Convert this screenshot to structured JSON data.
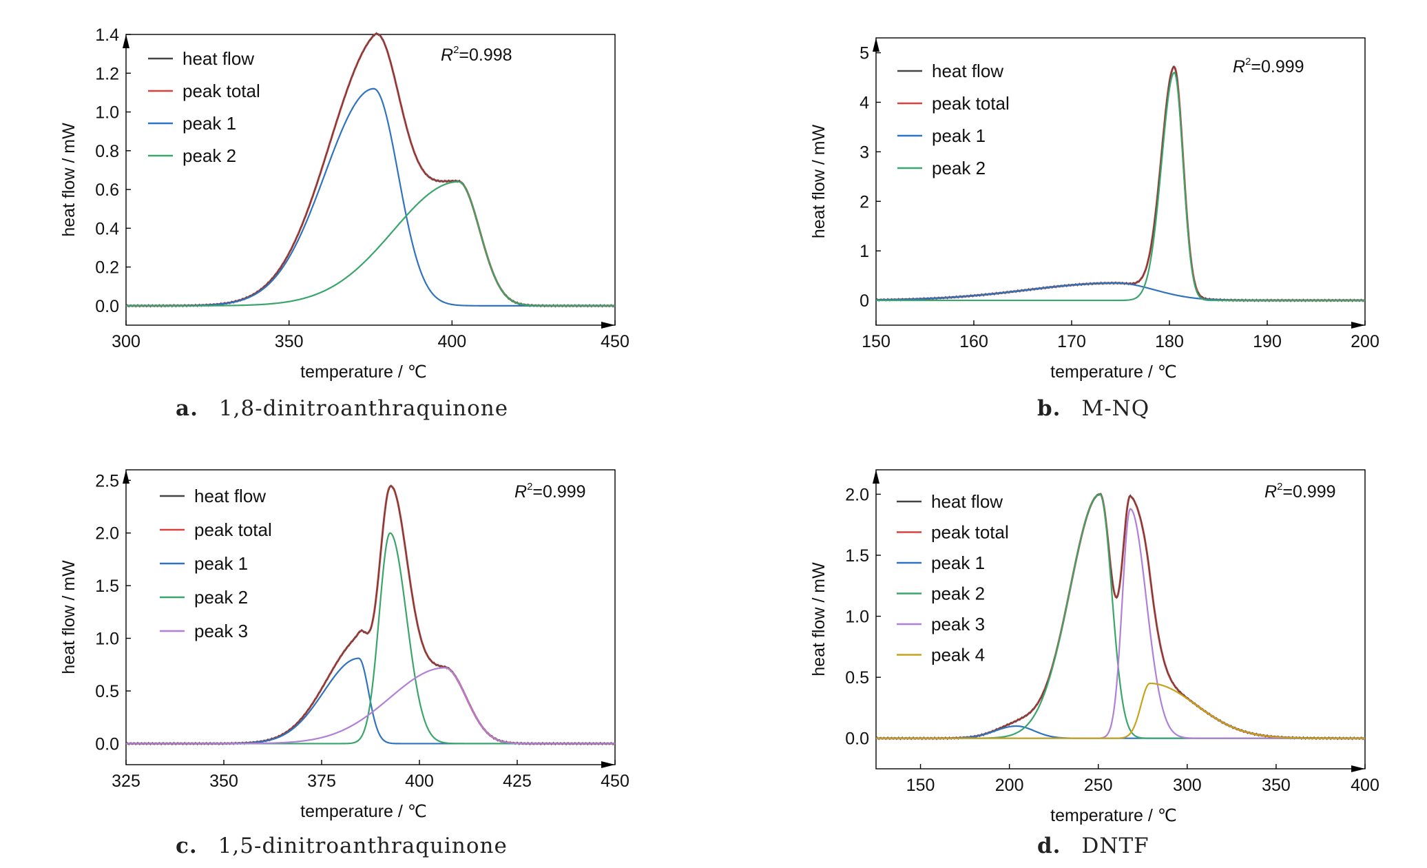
{
  "colors": {
    "heat_flow": "#444444",
    "peak_total": "#d9413c",
    "peak1": "#2f73c0",
    "peak2": "#3aa56a",
    "peak3": "#b07fd6",
    "peak4": "#c7a21b",
    "axis": "#000000"
  },
  "chart_data": [
    {
      "id": "a",
      "type": "line",
      "caption_letter": "a.",
      "caption_text": "1,8-dinitroanthraquinone",
      "xlabel": "temperature / ℃",
      "ylabel": "heat flow / mW",
      "xlim": [
        300,
        450
      ],
      "ylim": [
        -0.1,
        1.4
      ],
      "xticks": [
        300,
        350,
        400,
        450
      ],
      "xtick_labels": [
        "300",
        "350",
        "400",
        "450"
      ],
      "yticks": [
        0.0,
        0.2,
        0.4,
        0.6,
        0.8,
        1.0,
        1.2,
        1.4
      ],
      "ytick_labels": [
        "0.0",
        "0.2",
        "0.4",
        "0.6",
        "0.8",
        "1.0",
        "1.2",
        "1.4"
      ],
      "r2_symbol": "R",
      "r2_sup": "2",
      "r2_value": "=0.998",
      "legend_position": "top-left",
      "series": [
        {
          "name": "heat flow",
          "color_key": "heat_flow",
          "role": "total"
        },
        {
          "name": "peak total",
          "color_key": "peak_total",
          "role": "total"
        },
        {
          "name": "peak 1",
          "color_key": "peak1",
          "peak": {
            "center": 376,
            "amp": 1.12,
            "sigma_left": 15,
            "sigma_right": 7.5
          }
        },
        {
          "name": "peak 2",
          "color_key": "peak2",
          "peak": {
            "center": 402,
            "amp": 0.64,
            "sigma_left": 20,
            "sigma_right": 6.5
          }
        }
      ]
    },
    {
      "id": "b",
      "type": "line",
      "caption_letter": "b.",
      "caption_text": "M-NQ",
      "xlabel": "temperature / ℃",
      "ylabel": "heat flow / mW",
      "xlim": [
        150,
        200
      ],
      "ylim": [
        -0.5,
        5.3
      ],
      "xticks": [
        150,
        160,
        170,
        180,
        190,
        200
      ],
      "xtick_labels": [
        "150",
        "160",
        "170",
        "180",
        "190",
        "200"
      ],
      "yticks": [
        0,
        1,
        2,
        3,
        4,
        5
      ],
      "ytick_labels": [
        "0",
        "1",
        "2",
        "3",
        "4",
        "5"
      ],
      "r2_symbol": "R",
      "r2_sup": "2",
      "r2_value": "=0.999",
      "legend_position": "top-left",
      "series": [
        {
          "name": "heat flow",
          "color_key": "heat_flow",
          "role": "total"
        },
        {
          "name": "peak total",
          "color_key": "peak_total",
          "role": "total"
        },
        {
          "name": "peak 1",
          "color_key": "peak1",
          "peak": {
            "center": 174.5,
            "amp": 0.35,
            "sigma_left": 9,
            "sigma_right": 4
          }
        },
        {
          "name": "peak 2",
          "color_key": "peak2",
          "peak": {
            "center": 180.5,
            "amp": 4.6,
            "sigma_left": 1.3,
            "sigma_right": 0.9
          }
        }
      ]
    },
    {
      "id": "c",
      "type": "line",
      "caption_letter": "c.",
      "caption_text": "1,5-dinitroanthraquinone",
      "xlabel": "temperature / ℃",
      "ylabel": "heat flow / mW",
      "xlim": [
        325,
        450
      ],
      "ylim": [
        -0.2,
        2.6
      ],
      "xticks": [
        325,
        350,
        375,
        400,
        425,
        450
      ],
      "xtick_labels": [
        "325",
        "350",
        "375",
        "400",
        "425",
        "450"
      ],
      "yticks": [
        0.0,
        0.5,
        1.0,
        1.5,
        2.0,
        2.5
      ],
      "ytick_labels": [
        "0.0",
        "0.5",
        "1.0",
        "1.5",
        "2.0",
        "2.5"
      ],
      "r2_symbol": "R",
      "r2_sup": "2",
      "r2_value": "=0.999",
      "legend_position": "top-left",
      "series": [
        {
          "name": "heat flow",
          "color_key": "heat_flow",
          "role": "total"
        },
        {
          "name": "peak total",
          "color_key": "peak_total",
          "role": "total"
        },
        {
          "name": "peak 1",
          "color_key": "peak1",
          "peak": {
            "center": 384.5,
            "amp": 0.81,
            "sigma_left": 9,
            "sigma_right": 2.5
          }
        },
        {
          "name": "peak 2",
          "color_key": "peak2",
          "peak": {
            "center": 392.5,
            "amp": 2.0,
            "sigma_left": 2.8,
            "sigma_right": 4.2
          }
        },
        {
          "name": "peak 3",
          "color_key": "peak3",
          "peak": {
            "center": 406.5,
            "amp": 0.72,
            "sigma_left": 14,
            "sigma_right": 5.5
          }
        }
      ]
    },
    {
      "id": "d",
      "type": "line",
      "caption_letter": "d.",
      "caption_text": "DNTF",
      "xlabel": "temperature / ℃",
      "ylabel": "heat flow / mW",
      "xlim": [
        125,
        400
      ],
      "ylim": [
        -0.25,
        2.2
      ],
      "xticks": [
        150,
        200,
        250,
        300,
        350,
        400
      ],
      "xtick_labels": [
        "150",
        "200",
        "250",
        "300",
        "350",
        "400"
      ],
      "yticks": [
        0.0,
        0.5,
        1.0,
        1.5,
        2.0
      ],
      "ytick_labels": [
        "0.0",
        "0.5",
        "1.0",
        "1.5",
        "2.0"
      ],
      "r2_symbol": "R",
      "r2_sup": "2",
      "r2_value": "=0.999",
      "legend_position": "top-left",
      "series": [
        {
          "name": "heat flow",
          "color_key": "heat_flow",
          "role": "total"
        },
        {
          "name": "peak total",
          "color_key": "peak_total",
          "role": "total"
        },
        {
          "name": "peak 1",
          "color_key": "peak1",
          "peak": {
            "center": 204,
            "amp": 0.1,
            "sigma_left": 12,
            "sigma_right": 10
          }
        },
        {
          "name": "peak 2",
          "color_key": "peak2",
          "peak": {
            "center": 251,
            "amp": 2.0,
            "sigma_left": 17,
            "sigma_right": 6.5
          }
        },
        {
          "name": "peak 3",
          "color_key": "peak3",
          "peak": {
            "center": 268,
            "amp": 1.88,
            "sigma_left": 4.5,
            "sigma_right": 9
          }
        },
        {
          "name": "peak 4",
          "color_key": "peak4",
          "peak": {
            "center": 279,
            "amp": 0.45,
            "sigma_left": 5,
            "sigma_right": 26
          }
        }
      ]
    }
  ]
}
